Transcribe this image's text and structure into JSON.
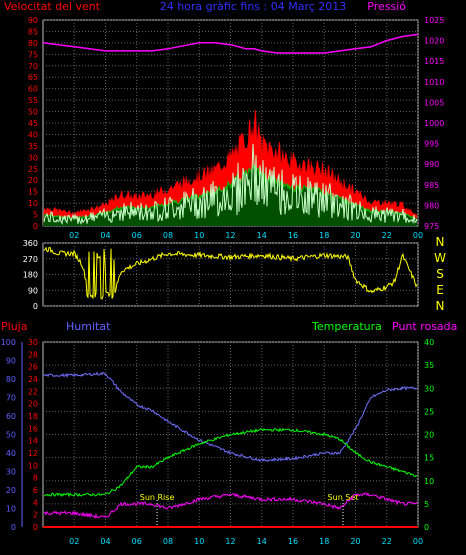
{
  "panel1": {
    "title": "24 hora gràfic fins : 04 Març 2013",
    "left_label": "Velocitat del vent",
    "right_label": "Pressió",
    "left_ticks": [
      "0",
      "5",
      "10",
      "15",
      "20",
      "25",
      "30",
      "35",
      "40",
      "45",
      "50",
      "55",
      "60",
      "65",
      "70",
      "75",
      "80",
      "85",
      "90"
    ],
    "right_ticks": [
      "975",
      "980",
      "985",
      "990",
      "995",
      "1000",
      "1005",
      "1010",
      "1015",
      "1020",
      "1025"
    ],
    "x_ticks": [
      "02",
      "04",
      "06",
      "08",
      "10",
      "12",
      "14",
      "16",
      "18",
      "20",
      "22",
      "00"
    ]
  },
  "panel2": {
    "left_ticks": [
      "0",
      "90",
      "180",
      "270",
      "360"
    ],
    "compass": [
      "N",
      "W",
      "S",
      "E",
      "N"
    ],
    "x_ticks": [
      "02",
      "04",
      "06",
      "08",
      "10",
      "12",
      "14",
      "16",
      "18",
      "20",
      "22",
      "00"
    ]
  },
  "panel3": {
    "labels": {
      "rain": "Pluja",
      "humidity": "Humitat",
      "temperature": "Temperatura",
      "dewpoint": "Punt rosada"
    },
    "rain_ticks": [
      "0",
      "2",
      "4",
      "6",
      "8",
      "10",
      "12",
      "14",
      "16",
      "18",
      "20",
      "22",
      "24",
      "26",
      "28",
      "30"
    ],
    "humidity_ticks": [
      "0",
      "10",
      "20",
      "30",
      "40",
      "50",
      "60",
      "70",
      "80",
      "90",
      "100"
    ],
    "temp_ticks": [
      "0",
      "5",
      "10",
      "15",
      "20",
      "25",
      "30",
      "35",
      "40"
    ],
    "sun_rise": "Sun Rise",
    "sun_set": "Sun Set",
    "x_ticks": [
      "02",
      "04",
      "06",
      "08",
      "10",
      "12",
      "14",
      "16",
      "18",
      "20",
      "22",
      "00"
    ]
  },
  "colors": {
    "gust": "#ff0000",
    "avg_wind": "#00c000",
    "wind_speed": "#c8ffc8",
    "pressure": "#ff00ff",
    "direction": "#ffff00",
    "humidity": "#7070ff",
    "temperature": "#00ff00",
    "dewpoint": "#ff00ff",
    "rain": "#ff0000",
    "grid": "#606060",
    "left_axis_red": "#ff0000",
    "humidity_axis": "#6060ff"
  },
  "chart_data": [
    {
      "type": "line",
      "title": "24 hora gràfic fins : 04 Març 2013",
      "x": [
        0,
        2,
        4,
        5,
        6,
        7,
        8,
        10,
        11,
        12,
        13,
        13.5,
        14,
        15,
        16,
        17,
        18,
        19,
        20,
        21,
        22,
        23,
        24
      ],
      "series": [
        {
          "name": "Velocitat del vent",
          "axis": "left",
          "values": [
            7,
            5,
            8,
            12,
            11,
            12,
            14,
            19,
            21,
            26,
            33,
            40,
            31,
            28,
            24,
            23,
            21,
            17,
            13,
            9,
            9,
            8,
            4
          ]
        },
        {
          "name": "Pressió",
          "axis": "right",
          "values": [
            1019.5,
            1018.5,
            1017.5,
            1017.5,
            1017.5,
            1017.5,
            1018,
            1019.5,
            1019.5,
            1019,
            1018,
            1018,
            1017.5,
            1017,
            1017,
            1017,
            1017,
            1017.5,
            1018,
            1018.5,
            1020,
            1021,
            1021.5
          ]
        }
      ],
      "ylim_left": [
        0,
        90
      ],
      "ylim_right": [
        975,
        1025
      ]
    },
    {
      "type": "line",
      "x": [
        0,
        0.5,
        1,
        2,
        2.5,
        3,
        3.5,
        4,
        4.5,
        5,
        6,
        8,
        10,
        12,
        14,
        16,
        18,
        19.5,
        20,
        21,
        22,
        22.5,
        23,
        24
      ],
      "series": [
        {
          "name": "direction",
          "values": [
            330,
            320,
            300,
            300,
            240,
            60,
            300,
            160,
            50,
            200,
            240,
            300,
            290,
            280,
            290,
            270,
            290,
            280,
            150,
            80,
            110,
            140,
            290,
            100
          ]
        }
      ],
      "ylim": [
        0,
        360
      ]
    },
    {
      "type": "line",
      "x": [
        0,
        2,
        4,
        5,
        6,
        7,
        8,
        10,
        12,
        14,
        16,
        18,
        19,
        20,
        21,
        22,
        23,
        24
      ],
      "series": [
        {
          "name": "Humitat",
          "axis": "humidity",
          "values": [
            82,
            82,
            83,
            73,
            66,
            63,
            57,
            47,
            40,
            36,
            37,
            40,
            40,
            53,
            70,
            74,
            75,
            75
          ]
        },
        {
          "name": "Temperatura",
          "axis": "temp",
          "values": [
            7,
            7,
            7,
            9,
            13,
            13,
            15,
            18,
            20,
            21,
            21,
            20,
            19,
            16,
            14,
            13,
            12,
            11
          ]
        },
        {
          "name": "Punt rosada",
          "axis": "temp",
          "values": [
            3,
            3,
            2,
            5,
            5,
            5,
            4,
            6,
            7,
            6,
            6,
            5,
            4,
            7,
            7,
            6,
            5,
            5
          ]
        },
        {
          "name": "Pluja",
          "axis": "rain",
          "values": [
            0,
            0,
            0,
            0,
            0,
            0,
            0,
            0,
            0,
            0,
            0,
            0,
            0,
            0,
            0,
            0,
            0,
            0
          ]
        }
      ],
      "sun_rise": 7.3,
      "sun_set": 19.2,
      "ylim_humidity": [
        0,
        100
      ],
      "ylim_temp": [
        0,
        40
      ],
      "ylim_rain": [
        0,
        30
      ]
    }
  ]
}
